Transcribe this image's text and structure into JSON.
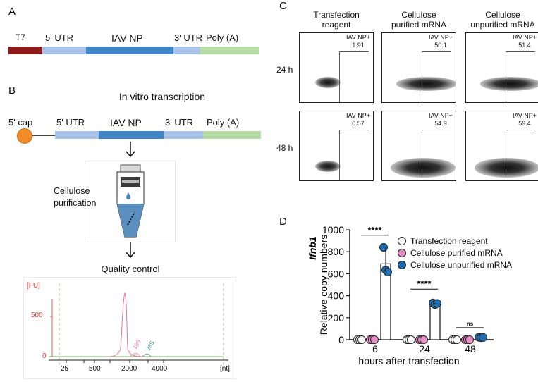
{
  "panels": {
    "a": "A",
    "b": "B",
    "c": "C",
    "d": "D"
  },
  "construct_a": {
    "segments": [
      {
        "label": "T7",
        "color": "#8b1a1a"
      },
      {
        "label": "5' UTR",
        "color": "#a9c4e8"
      },
      {
        "label": "IAV NP",
        "color": "#3f86c8"
      },
      {
        "label": "3' UTR",
        "color": "#a9c4e8"
      },
      {
        "label": "Poly (A)",
        "color": "#b7dca3"
      }
    ]
  },
  "panel_b": {
    "title": "In vitro transcription",
    "cap_label": "5' cap",
    "segments": [
      {
        "label": "5' UTR",
        "color": "#a9c4e8"
      },
      {
        "label": "IAV NP",
        "color": "#3f86c8"
      },
      {
        "label": "3' UTR",
        "color": "#a9c4e8"
      },
      {
        "label": "Poly (A)",
        "color": "#b7dca3"
      }
    ],
    "purification_label_1": "Cellulose",
    "purification_label_2": "purification",
    "qc_title": "Quality control",
    "qc_chart": {
      "y_unit": "[FU]",
      "y_tick": "500",
      "y_zero": "0",
      "x_unit": "[nt]",
      "x_ticks": [
        "25",
        "500",
        "2000",
        "4000"
      ],
      "peak_labels": [
        "18S",
        "28S"
      ],
      "colors": {
        "trace_pink": "#e07a9a",
        "trace_green": "#6aa84f",
        "trace_teal": "#3d8b8b",
        "axis_red": "#d93636"
      }
    }
  },
  "panel_c": {
    "columns": [
      "Transfection reagent",
      "Cellulose purified mRNA",
      "Cellulose unpurified mRNA"
    ],
    "columns_line1": [
      "Transfection",
      "Cellulose",
      "Cellulose"
    ],
    "columns_line2": [
      "reagent",
      "purified mRNA",
      "unpurified mRNA"
    ],
    "rows": [
      "24 h",
      "48 h"
    ],
    "gate_label": "IAV NP+",
    "values": [
      [
        "1.91",
        "50.1",
        "51.4"
      ],
      [
        "0.57",
        "54.9",
        "59.4"
      ]
    ]
  },
  "chart_data": {
    "type": "bar",
    "title": "",
    "ylabel_gene": "Ifnb1",
    "ylabel": "Relative copy numbers",
    "xlabel": "hours after transfection",
    "categories": [
      "6",
      "24",
      "48"
    ],
    "ylim": [
      0,
      1000
    ],
    "yticks": [
      "0",
      "200",
      "400",
      "600",
      "800",
      "1000"
    ],
    "series": [
      {
        "name": "Transfection reagent",
        "color": "#ffffff",
        "values": [
          0,
          0,
          0
        ],
        "points": [
          [
            0,
            0,
            0
          ],
          [
            0,
            0,
            0
          ],
          [
            0,
            0,
            0
          ]
        ]
      },
      {
        "name": "Cellulose purified mRNA",
        "color": "#e58fc6",
        "values": [
          0,
          0,
          0
        ],
        "points": [
          [
            0,
            0,
            0
          ],
          [
            0,
            0,
            0
          ],
          [
            0,
            0,
            0
          ]
        ]
      },
      {
        "name": "Cellulose unpurified mRNA",
        "color": "#1f6fb5",
        "values": [
          690,
          325,
          20
        ],
        "points": [
          [
            840,
            635,
            615
          ],
          [
            335,
            320,
            330
          ],
          [
            22,
            18,
            20
          ]
        ]
      }
    ],
    "significance": [
      "****",
      "****",
      "ns"
    ]
  }
}
